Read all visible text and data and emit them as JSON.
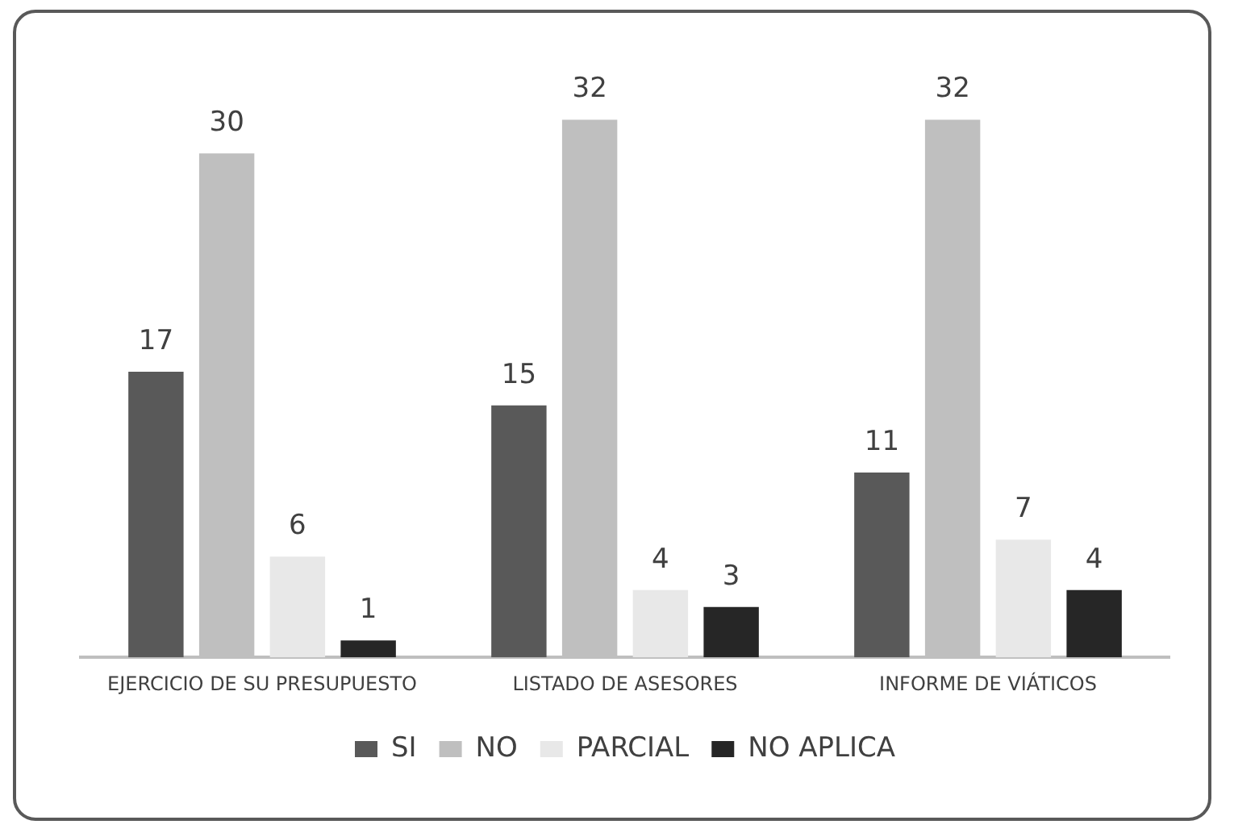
{
  "chart_data": {
    "type": "bar",
    "categories": [
      "EJERCICIO DE SU PRESUPUESTO",
      "LISTADO DE ASESORES",
      "INFORME DE VIÁTICOS"
    ],
    "series": [
      {
        "name": "SI",
        "color": "#595959",
        "values": [
          17,
          15,
          11
        ]
      },
      {
        "name": "NO",
        "color": "#bfbfbf",
        "values": [
          30,
          32,
          32
        ]
      },
      {
        "name": "PARCIAL",
        "color": "#e8e8e8",
        "values": [
          6,
          4,
          7
        ]
      },
      {
        "name": "NO APLICA",
        "color": "#262626",
        "values": [
          1,
          3,
          4
        ]
      }
    ],
    "data_labels": true,
    "legend": "bottom",
    "grid": false
  }
}
